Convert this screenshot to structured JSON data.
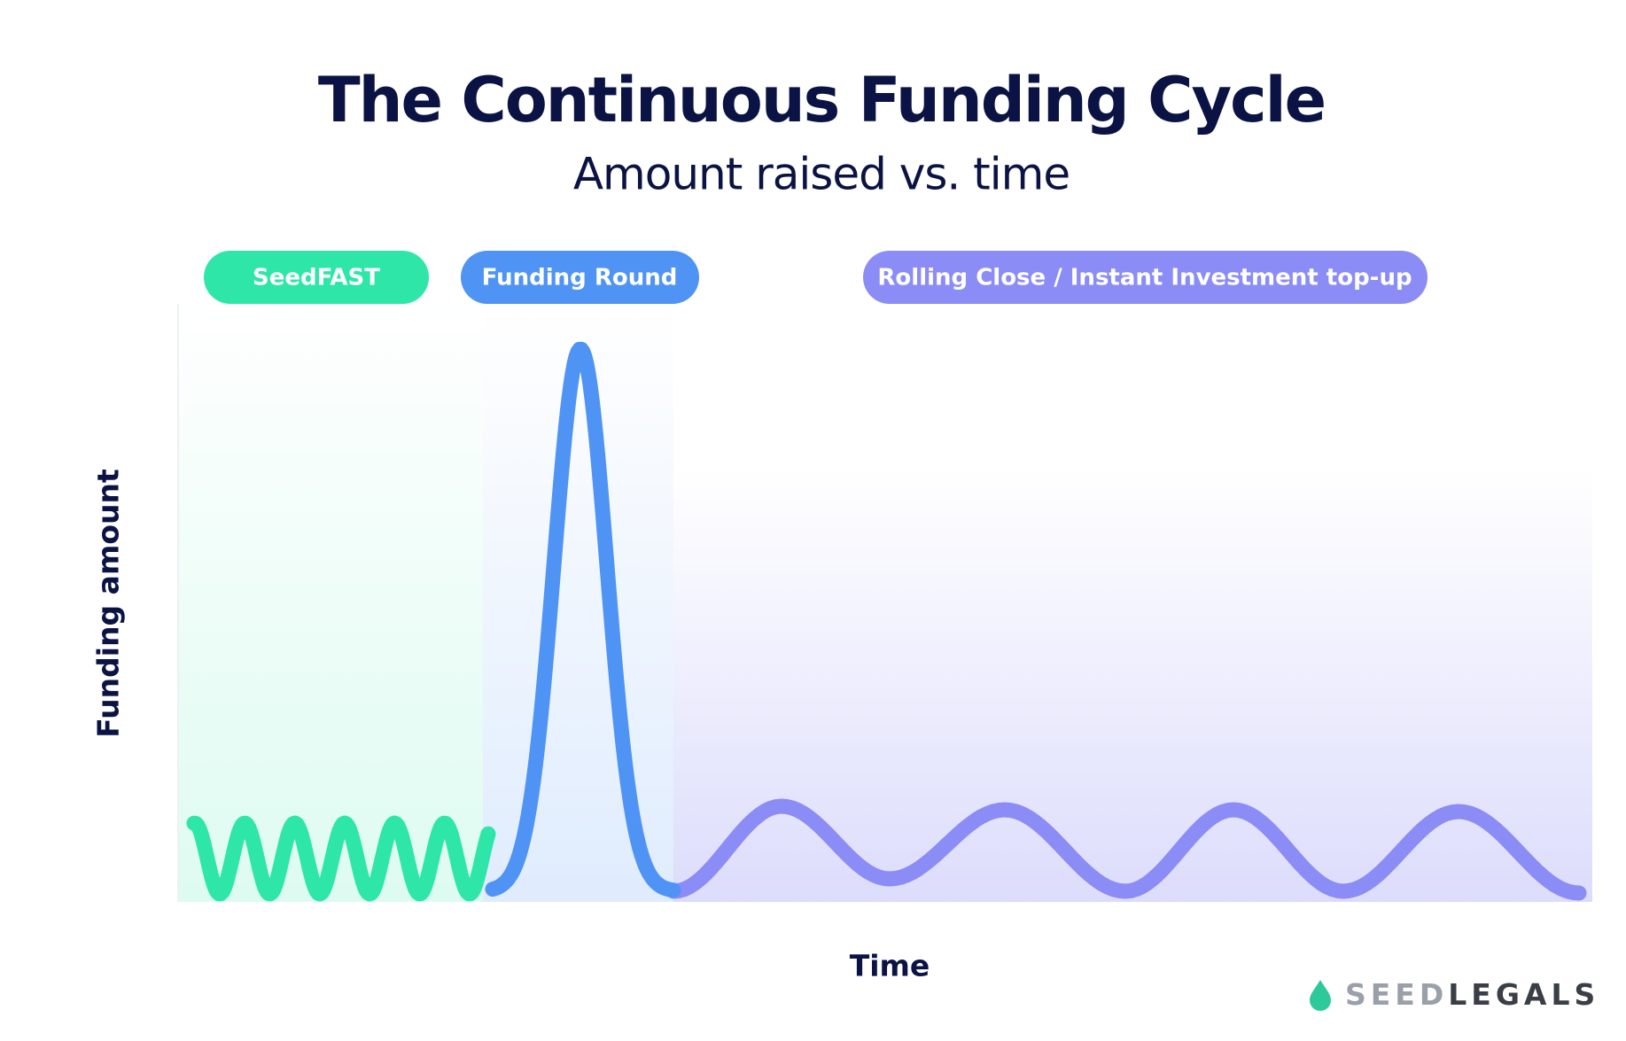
{
  "header": {
    "title": "The Continuous Funding Cycle",
    "subtitle": "Amount raised vs. time"
  },
  "phases": [
    {
      "label": "SeedFAST"
    },
    {
      "label": "Funding Round"
    },
    {
      "label": "Rolling Close / Instant Investment top-up"
    }
  ],
  "axes": {
    "y_label": "Funding amount",
    "x_label": "Time"
  },
  "logo": {
    "part1": "SEED",
    "part2": "LEGALS"
  }
}
